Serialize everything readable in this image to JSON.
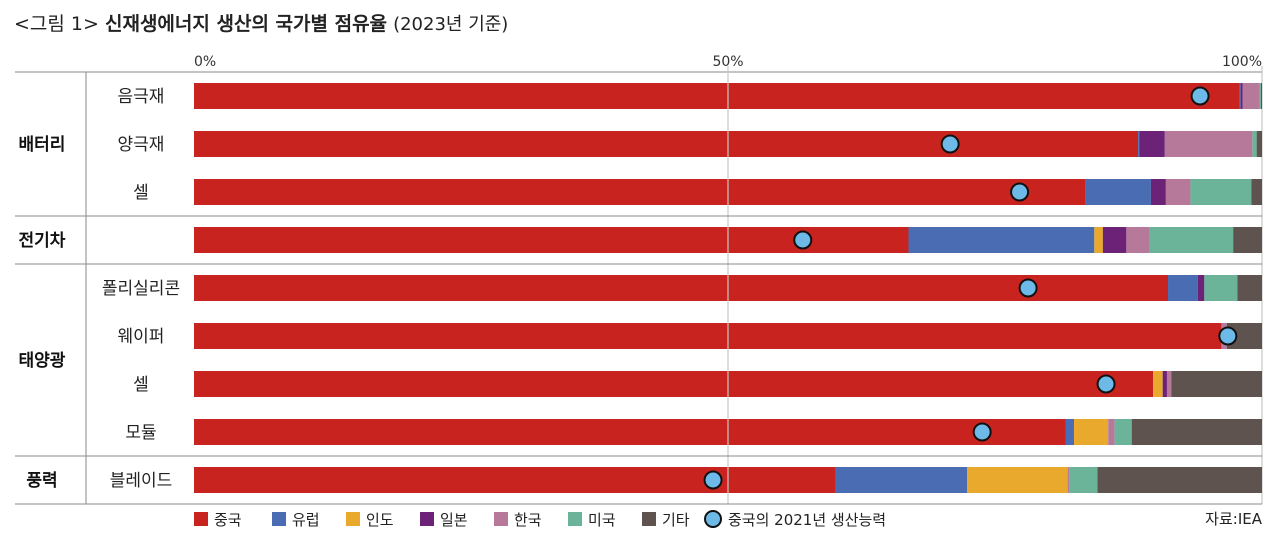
{
  "title": {
    "prefix": "<그림 1>",
    "main": "신재생에너지 생산의 국가별 점유율",
    "suffix": "(2023년 기준)"
  },
  "source": "자료:IEA",
  "colors": {
    "중국": "#c8231f",
    "유럽": "#4a6cb3",
    "인도": "#e9a92c",
    "일본": "#6b2277",
    "한국": "#b7799a",
    "미국": "#6bb49a",
    "기타": "#5e534e",
    "marker": "#6db9e8"
  },
  "chart_data": {
    "type": "bar",
    "orientation": "horizontal",
    "stacked": true,
    "xlim": [
      0,
      100
    ],
    "x_ticks": [
      "0%",
      "50%",
      "100%"
    ],
    "grid": "vertical line at 50%",
    "legend_position": "bottom",
    "groups": [
      {
        "name": "배터리",
        "rows": [
          "음극재",
          "양극재",
          "셀"
        ]
      },
      {
        "name": "전기차",
        "rows": [
          ""
        ]
      },
      {
        "name": "태양광",
        "rows": [
          "폴리실리콘",
          "웨이퍼",
          "셀",
          "모듈"
        ]
      },
      {
        "name": "풍력",
        "rows": [
          "블레이드"
        ]
      }
    ],
    "categories": [
      "음극재",
      "양극재",
      "셀",
      "",
      "폴리실리콘",
      "웨이퍼",
      "셀",
      "모듈",
      "블레이드"
    ],
    "series": [
      {
        "name": "중국",
        "values": [
          97.9,
          88.4,
          83.5,
          66.9,
          91.2,
          96.2,
          89.8,
          81.6,
          60.1
        ]
      },
      {
        "name": "유럽",
        "values": [
          0.1,
          0.1,
          6.1,
          17.4,
          2.8,
          0.0,
          0.0,
          0.8,
          12.3
        ]
      },
      {
        "name": "인도",
        "values": [
          0.0,
          0.0,
          0.0,
          0.8,
          0.0,
          0.0,
          0.9,
          3.2,
          9.4
        ]
      },
      {
        "name": "일본",
        "values": [
          0.2,
          2.4,
          1.4,
          2.2,
          0.6,
          0.0,
          0.4,
          0.0,
          0.0
        ]
      },
      {
        "name": "한국",
        "values": [
          1.6,
          8.2,
          2.3,
          2.2,
          0.0,
          0.5,
          0.4,
          0.6,
          0.2
        ]
      },
      {
        "name": "미국",
        "values": [
          0.1,
          0.4,
          5.7,
          7.8,
          3.1,
          0.0,
          0.0,
          1.6,
          2.6
        ]
      },
      {
        "name": "기타",
        "values": [
          0.1,
          0.5,
          1.0,
          2.7,
          2.3,
          3.3,
          8.5,
          12.2,
          15.4
        ]
      }
    ],
    "marker_series": {
      "name": "중국의 2021년 생산능력",
      "values": [
        94.2,
        70.8,
        77.3,
        57.0,
        78.1,
        96.8,
        85.4,
        73.8,
        48.6
      ]
    }
  }
}
